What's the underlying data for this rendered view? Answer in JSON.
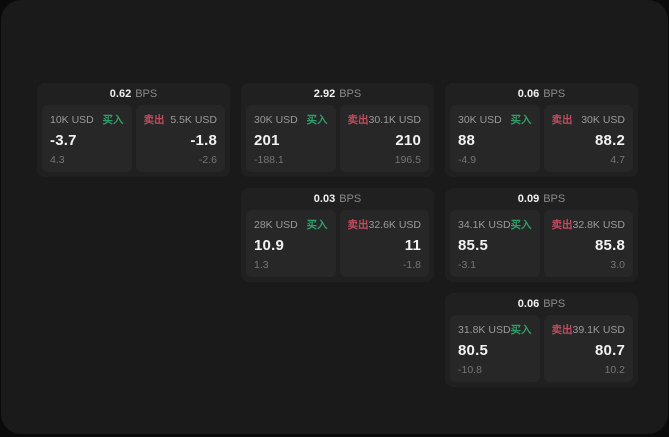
{
  "colors": {
    "page_bg": "#0a0a0a",
    "window_bg": "#1a1a1a",
    "card_bg": "#202020",
    "panel_bg": "#272727",
    "text_primary": "#f2f2f2",
    "text_secondary": "#9a9a9a",
    "text_tertiary": "#757575",
    "buy_green": "#2f9f6a",
    "sell_red": "#bf4b5f"
  },
  "labels": {
    "bps_unit": "BPS",
    "buy": "买入",
    "sell": "卖出"
  },
  "cards": [
    {
      "bps": "0.62",
      "buy": {
        "amount": "10K USD",
        "value": "-3.7",
        "sub": "4.3"
      },
      "sell": {
        "amount": "5.5K USD",
        "value": "-1.8",
        "sub": "-2.6"
      }
    },
    {
      "bps": "2.92",
      "buy": {
        "amount": "30K USD",
        "value": "201",
        "sub": "-188.1"
      },
      "sell": {
        "amount": "30.1K USD",
        "value": "210",
        "sub": "196.5"
      }
    },
    {
      "bps": "0.06",
      "buy": {
        "amount": "30K USD",
        "value": "88",
        "sub": "-4.9"
      },
      "sell": {
        "amount": "30K USD",
        "value": "88.2",
        "sub": "4.7"
      }
    },
    {
      "bps": "0.03",
      "buy": {
        "amount": "28K USD",
        "value": "10.9",
        "sub": "1.3"
      },
      "sell": {
        "amount": "32.6K USD",
        "value": "11",
        "sub": "-1.8"
      }
    },
    {
      "bps": "0.09",
      "buy": {
        "amount": "34.1K USD",
        "value": "85.5",
        "sub": "-3.1"
      },
      "sell": {
        "amount": "32.8K USD",
        "value": "85.8",
        "sub": "3.0"
      }
    },
    {
      "bps": "0.06",
      "buy": {
        "amount": "31.8K USD",
        "value": "80.5",
        "sub": "-10.8"
      },
      "sell": {
        "amount": "39.1K USD",
        "value": "80.7",
        "sub": "10.2"
      }
    }
  ]
}
